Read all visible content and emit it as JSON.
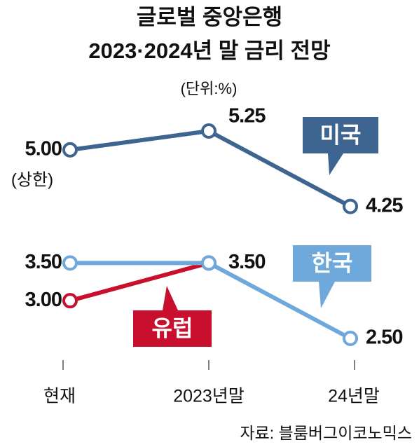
{
  "chart_data": {
    "type": "line",
    "title": "글로벌 중앙은행",
    "subtitle": "2023·2024년 말 금리 전망",
    "unit": "(단위:%)",
    "annotation": "(상한)",
    "source": "자료: 블룸버그이코노믹스",
    "categories": [
      "현재",
      "2023년말",
      "24년말"
    ],
    "series": [
      {
        "name": "미국",
        "color": "#3e6590",
        "values": [
          5.0,
          5.25,
          4.25
        ],
        "value_labels": [
          "5.00",
          "5.25",
          "4.25"
        ]
      },
      {
        "name": "한국",
        "color": "#6fa9dc",
        "values": [
          3.5,
          3.5,
          2.5
        ],
        "value_labels": [
          "3.50",
          "3.50",
          "2.50"
        ]
      },
      {
        "name": "유럽",
        "color": "#c8102e",
        "values": [
          3.0,
          3.5,
          null
        ],
        "value_labels": [
          "3.00",
          null,
          null
        ]
      }
    ]
  }
}
